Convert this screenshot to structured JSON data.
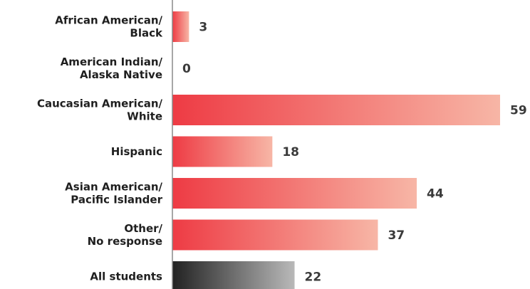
{
  "chart_data": {
    "type": "bar",
    "orientation": "horizontal",
    "categories": [
      "African American/\nBlack",
      "American Indian/\nAlaska Native",
      "Caucasian American/\nWhite",
      "Hispanic",
      "Asian American/\nPacific Islander",
      "Other/\nNo response",
      "All students"
    ],
    "values": [
      3,
      0,
      59,
      18,
      44,
      37,
      22
    ],
    "xlim": [
      0,
      59
    ],
    "grid": false,
    "legend": "none",
    "title": "",
    "xlabel": "",
    "ylabel": "",
    "colors": {
      "bar_start": "#ee3b44",
      "bar_end": "#f7b6a6",
      "total_start": "#222222",
      "total_end": "#b9b9b9",
      "axis": "#8a8a8a",
      "label": "#1f1f1f",
      "value": "#3a3a3a"
    }
  }
}
